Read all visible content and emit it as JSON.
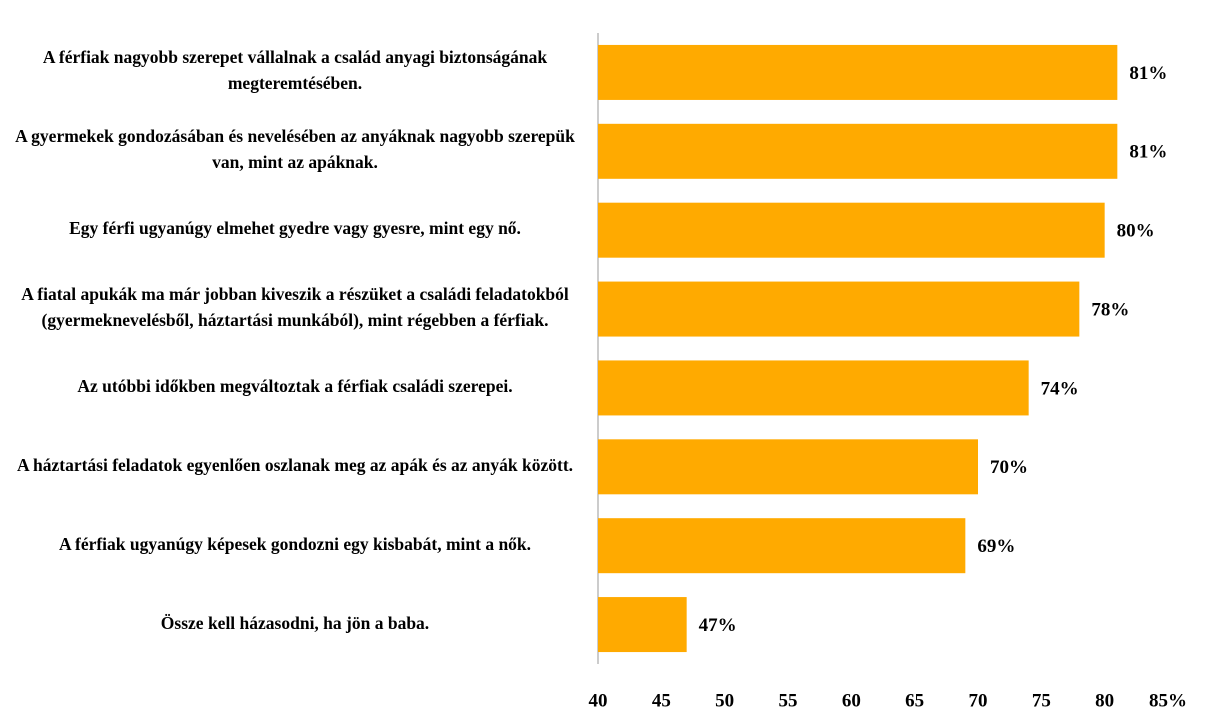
{
  "chart_data": {
    "type": "bar",
    "orientation": "horizontal",
    "categories": [
      "A férfiak nagyobb szerepet vállalnak a család anyagi biztonságának megteremtésében.",
      "A gyermekek gondozásában és nevelésében az anyáknak nagyobb szerepük van, mint az apáknak.",
      "Egy férfi ugyanúgy elmehet gyedre vagy gyesre, mint egy nő.",
      "A fiatal apukák ma már jobban kiveszik a részüket a családi feladatokból (gyermeknevelésből, háztartási munkából), mint régebben a férfiak.",
      "Az utóbbi időkben megváltoztak a férfiak családi szerepei.",
      "A háztartási feladatok egyenlően oszlanak meg az apák és az anyák között.",
      "A férfiak ugyanúgy képesek gondozni egy kisbabát, mint a nők.",
      "Össze kell házasodni, ha jön a baba."
    ],
    "values": [
      81,
      81,
      80,
      78,
      74,
      70,
      69,
      47
    ],
    "value_labels": [
      "81%",
      "81%",
      "80%",
      "78%",
      "74%",
      "70%",
      "69%",
      "47%"
    ],
    "color": "#ffaa00",
    "xlim": [
      40,
      85
    ],
    "xticks": [
      40,
      45,
      50,
      55,
      60,
      65,
      70,
      75,
      80,
      {
        "value": 85,
        "label": "85%"
      }
    ]
  }
}
